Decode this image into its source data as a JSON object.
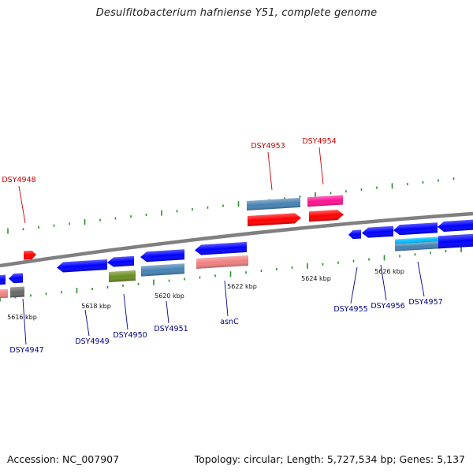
{
  "title": "Desulfitobacterium hafniense Y51, complete genome",
  "footer": {
    "accession": "Accession: NC_007907",
    "summary": "Topology: circular; Length: 5,727,534 bp; Genes: 5,137"
  },
  "colors": {
    "backbone": "#808080",
    "tick": "#2e8b2e",
    "label_forward": "#cc0000",
    "label_reverse": "#00008b"
  },
  "scale_ticks": [
    {
      "label": "5616 kbp"
    },
    {
      "label": "5618 kbp"
    },
    {
      "label": "5620 kbp"
    },
    {
      "label": "5622 kbp"
    },
    {
      "label": "5624 kbp"
    },
    {
      "label": "5626 kbp"
    }
  ],
  "gene_labels": [
    {
      "text": "DSY4948",
      "strand": "forward"
    },
    {
      "text": "DSY4953",
      "strand": "forward"
    },
    {
      "text": "DSY4954",
      "strand": "forward"
    },
    {
      "text": "DSY4947",
      "strand": "reverse"
    },
    {
      "text": "DSY4949",
      "strand": "reverse"
    },
    {
      "text": "DSY4950",
      "strand": "reverse"
    },
    {
      "text": "DSY4951",
      "strand": "reverse"
    },
    {
      "text": "asnC",
      "strand": "reverse"
    },
    {
      "text": "DSY4955",
      "strand": "reverse"
    },
    {
      "text": "DSY4956",
      "strand": "reverse"
    },
    {
      "text": "DSY4957",
      "strand": "reverse"
    }
  ],
  "features": [
    {
      "name": "forward-gene-a",
      "color": "#ff0000"
    },
    {
      "name": "forward-gene-dsy4953-upper",
      "color": "#4682b4"
    },
    {
      "name": "forward-gene-dsy4953",
      "color": "#ff0000"
    },
    {
      "name": "forward-gene-dsy4954-upper",
      "color": "#ff1493"
    },
    {
      "name": "forward-gene-dsy4954",
      "color": "#ff0000"
    },
    {
      "name": "reverse-gene-edge",
      "color": "#0000ff"
    },
    {
      "name": "reverse-gene-edge-lower",
      "color": "#f08080"
    },
    {
      "name": "reverse-gene-dsy4947-upper",
      "color": "#0000ff"
    },
    {
      "name": "reverse-gene-dsy4947",
      "color": "#696969"
    },
    {
      "name": "reverse-gene-dsy4949",
      "color": "#0000ff"
    },
    {
      "name": "reverse-gene-dsy4950-upper",
      "color": "#0000ff"
    },
    {
      "name": "reverse-gene-dsy4950",
      "color": "#6b8e23"
    },
    {
      "name": "reverse-gene-dsy4951-upper",
      "color": "#0000ff"
    },
    {
      "name": "reverse-gene-dsy4951",
      "color": "#4682b4"
    },
    {
      "name": "reverse-gene-asnc-upper",
      "color": "#0000ff"
    },
    {
      "name": "reverse-gene-asnc",
      "color": "#f08080"
    },
    {
      "name": "reverse-gene-dsy4955",
      "color": "#0000ff"
    },
    {
      "name": "reverse-gene-dsy4956",
      "color": "#0000ff"
    },
    {
      "name": "reverse-gene-dsy4957-upper",
      "color": "#0000ff"
    },
    {
      "name": "reverse-gene-dsy4957",
      "color": "#00bfff"
    },
    {
      "name": "reverse-gene-dsy4957-lower",
      "color": "#4682b4"
    },
    {
      "name": "reverse-gene-end-upper",
      "color": "#0000ff"
    },
    {
      "name": "reverse-gene-end",
      "color": "#0000ff"
    }
  ]
}
